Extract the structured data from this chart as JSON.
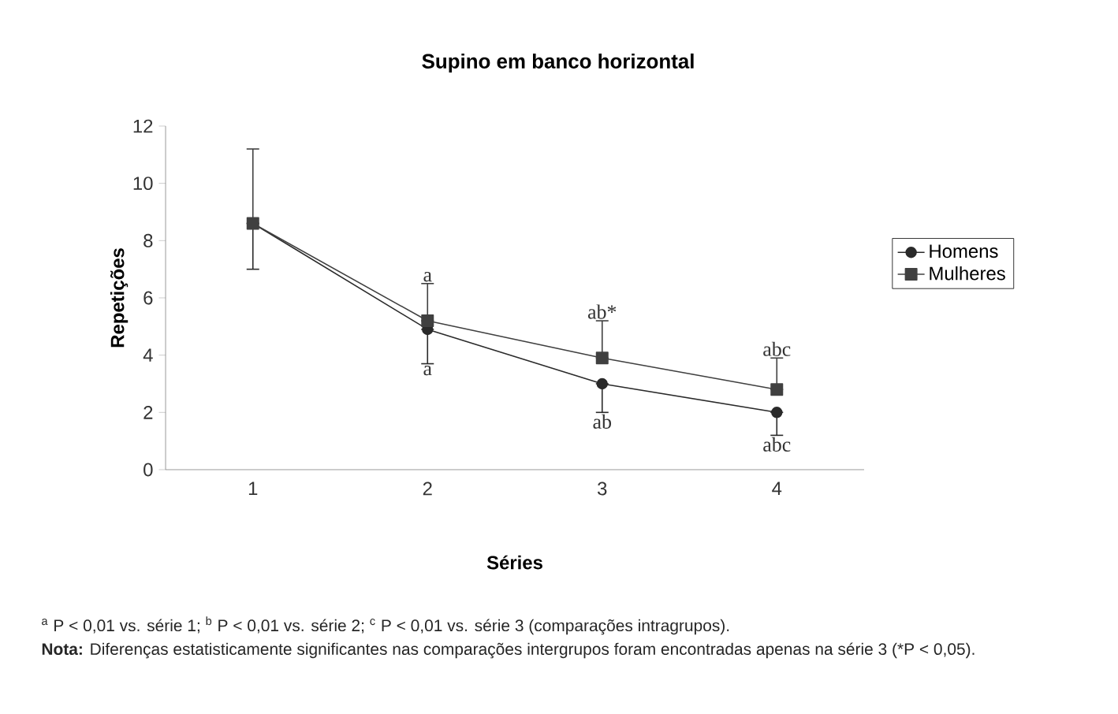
{
  "chart_data": {
    "type": "line",
    "title": "Supino em banco horizontal",
    "xlabel": "Séries",
    "ylabel": "Repetições",
    "categories": [
      "1",
      "2",
      "3",
      "4"
    ],
    "series": [
      {
        "name": "Homens",
        "color": "#2a2a2a",
        "marker": "circle",
        "values": [
          8.6,
          4.9,
          3.0,
          2.0
        ],
        "errors": [
          [
            7.0,
            8.6
          ],
          [
            3.7,
            4.9
          ],
          [
            2.0,
            3.0
          ],
          [
            1.2,
            2.0
          ]
        ]
      },
      {
        "name": "Mulheres",
        "color": "#404040",
        "marker": "square",
        "values": [
          8.6,
          5.2,
          3.9,
          2.8
        ],
        "errors": [
          [
            8.6,
            11.2
          ],
          [
            5.2,
            6.5
          ],
          [
            3.9,
            5.2
          ],
          [
            2.8,
            3.9
          ]
        ]
      }
    ],
    "ylim": [
      0,
      12
    ],
    "yticks": [
      0,
      2,
      4,
      6,
      8,
      10,
      12
    ],
    "legend": "right",
    "grid": false,
    "annotations": [
      {
        "text": "a",
        "x": "2",
        "y": 6.5
      },
      {
        "text": "a",
        "x": "2",
        "y": 3.7
      },
      {
        "text": "ab*",
        "x": "3",
        "y": 5.2
      },
      {
        "text": "ab",
        "x": "3",
        "y": 2.0
      },
      {
        "text": "abc",
        "x": "4",
        "y": 3.9
      },
      {
        "text": "abc",
        "x": "4",
        "y": 1.2
      },
      "$^{a}$ P < 0,01 vs. série 1; $^{b}$ P < 0,01 vs. série 2; $^{c}$ P < 0,01 vs. série 3 (comparações intragrupos).",
      "**Nota:** Diferenças estatisticamente significantes nas comparações intergrupos foram encontradas apenas na série 3 (*P < 0,05)."
    ]
  }
}
